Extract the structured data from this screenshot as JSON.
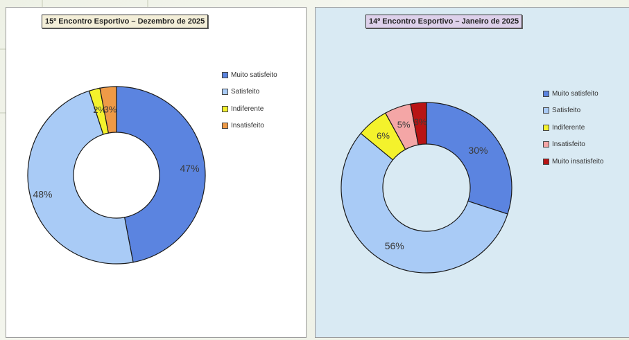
{
  "chart_data": [
    {
      "type": "pie",
      "title": "15º Encontro Esportivo – Dezembro de 2025",
      "categories": [
        "Muito satisfeito",
        "Satisfeito",
        "Indiferente",
        "Insatisfeito"
      ],
      "values": [
        47,
        48,
        2,
        3
      ],
      "data_labels": [
        "47%",
        "48%",
        "2%",
        "3%"
      ],
      "colors": [
        "#5b84e0",
        "#a9cbf6",
        "#f4f22c",
        "#ee9a47"
      ],
      "legend": "right"
    },
    {
      "type": "pie",
      "title": "14º Encontro Esportivo – Janeiro de 2025",
      "categories": [
        "Muito satisfeito",
        "Satisfeito",
        "Indiferente",
        "Insatisfeito",
        "Muito insatisfeito"
      ],
      "values": [
        30,
        56,
        6,
        5,
        3
      ],
      "data_labels": [
        "30%",
        "56%",
        "6%",
        "5%",
        "3%"
      ],
      "colors": [
        "#5b84e0",
        "#a9cbf6",
        "#f4f22c",
        "#f4a6a6",
        "#b81414"
      ],
      "legend": "right"
    }
  ]
}
